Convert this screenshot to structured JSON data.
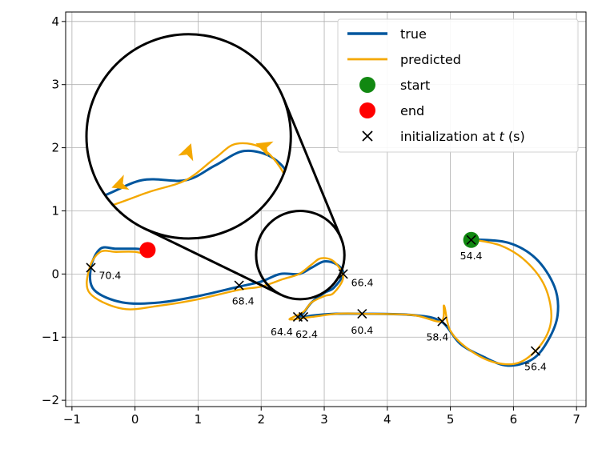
{
  "chart_data": {
    "type": "line",
    "title": "",
    "xlabel": "",
    "ylabel": "",
    "xlim": [
      -1.1,
      7.15
    ],
    "ylim": [
      -2.1,
      4.15
    ],
    "xticks": [
      -1,
      0,
      1,
      2,
      3,
      4,
      5,
      6,
      7
    ],
    "yticks": [
      -2,
      -1,
      0,
      1,
      2,
      3,
      4
    ],
    "grid": true,
    "legend_position": "top-right",
    "colors": {
      "true": "#00569e",
      "predicted": "#f4a800",
      "start": "#118811",
      "end": "#ff0000",
      "init": "#000000"
    },
    "series": [
      {
        "name": "true",
        "points": [
          [
            5.3,
            0.55
          ],
          [
            5.9,
            0.5
          ],
          [
            6.35,
            0.25
          ],
          [
            6.65,
            -0.2
          ],
          [
            6.7,
            -0.65
          ],
          [
            6.55,
            -1.05
          ],
          [
            6.3,
            -1.35
          ],
          [
            5.9,
            -1.45
          ],
          [
            5.5,
            -1.3
          ],
          [
            5.15,
            -1.1
          ],
          [
            4.85,
            -0.75
          ],
          [
            4.4,
            -0.65
          ],
          [
            3.6,
            -0.63
          ],
          [
            3.2,
            -0.63
          ],
          [
            2.8,
            -0.66
          ],
          [
            2.6,
            -0.7
          ],
          [
            2.67,
            -0.62
          ],
          [
            2.8,
            -0.45
          ],
          [
            3.0,
            -0.3
          ],
          [
            3.15,
            -0.22
          ],
          [
            3.3,
            0.0
          ],
          [
            3.2,
            0.15
          ],
          [
            3.0,
            0.2
          ],
          [
            2.8,
            0.1
          ],
          [
            2.6,
            0.0
          ],
          [
            2.3,
            0.0
          ],
          [
            2.0,
            -0.12
          ],
          [
            1.65,
            -0.2
          ],
          [
            1.0,
            -0.35
          ],
          [
            0.4,
            -0.45
          ],
          [
            -0.2,
            -0.45
          ],
          [
            -0.65,
            -0.25
          ],
          [
            -0.7,
            0.1
          ],
          [
            -0.55,
            0.4
          ],
          [
            -0.3,
            0.4
          ],
          [
            0.0,
            0.4
          ],
          [
            0.2,
            0.38
          ]
        ]
      },
      {
        "name": "predicted",
        "points": [
          [
            5.33,
            0.55
          ],
          [
            5.8,
            0.45
          ],
          [
            6.2,
            0.2
          ],
          [
            6.5,
            -0.2
          ],
          [
            6.6,
            -0.7
          ],
          [
            6.45,
            -1.1
          ],
          [
            6.1,
            -1.4
          ],
          [
            5.7,
            -1.4
          ],
          [
            5.3,
            -1.2
          ],
          [
            5.0,
            -0.9
          ],
          [
            4.9,
            -0.5
          ],
          [
            4.85,
            -0.75
          ],
          [
            4.4,
            -0.65
          ],
          [
            3.6,
            -0.63
          ],
          [
            3.2,
            -0.63
          ],
          [
            2.8,
            -0.68
          ],
          [
            2.45,
            -0.72
          ],
          [
            2.67,
            -0.6
          ],
          [
            2.8,
            -0.45
          ],
          [
            3.0,
            -0.35
          ],
          [
            3.15,
            -0.3
          ],
          [
            3.3,
            -0.05
          ],
          [
            3.15,
            0.2
          ],
          [
            2.95,
            0.25
          ],
          [
            2.8,
            0.15
          ],
          [
            2.6,
            0.0
          ],
          [
            2.35,
            -0.08
          ],
          [
            2.0,
            -0.2
          ],
          [
            1.65,
            -0.25
          ],
          [
            1.0,
            -0.4
          ],
          [
            0.4,
            -0.5
          ],
          [
            -0.2,
            -0.55
          ],
          [
            -0.72,
            -0.3
          ],
          [
            -0.72,
            0.1
          ],
          [
            -0.55,
            0.35
          ],
          [
            -0.3,
            0.35
          ],
          [
            0.0,
            0.35
          ],
          [
            0.2,
            0.3
          ]
        ]
      }
    ],
    "start": {
      "label": "start",
      "x": 5.33,
      "y": 0.54
    },
    "end": {
      "label": "end",
      "x": 0.2,
      "y": 0.38
    },
    "initializations": [
      {
        "x": 5.33,
        "y": 0.54,
        "t": "54.4"
      },
      {
        "x": 6.35,
        "y": -1.22,
        "t": "56.4"
      },
      {
        "x": 4.87,
        "y": -0.75,
        "t": "58.4"
      },
      {
        "x": 3.6,
        "y": -0.63,
        "t": "60.4"
      },
      {
        "x": 2.67,
        "y": -0.68,
        "t": "62.4"
      },
      {
        "x": 2.58,
        "y": -0.68,
        "t": "64.4"
      },
      {
        "x": 3.3,
        "y": 0.0,
        "t": "66.4"
      },
      {
        "x": 1.65,
        "y": -0.18,
        "t": "68.4"
      },
      {
        "x": -0.7,
        "y": 0.1,
        "t": "70.4"
      }
    ],
    "legend": [
      {
        "kind": "line",
        "label": "true",
        "color": "#00569e"
      },
      {
        "kind": "line",
        "label": "predicted",
        "color": "#f4a800"
      },
      {
        "kind": "dot",
        "label": "start",
        "color": "#118811"
      },
      {
        "kind": "dot",
        "label": "end",
        "color": "#ff0000"
      },
      {
        "kind": "x",
        "label_parts": [
          "initialization at ",
          "t",
          " (s)"
        ],
        "color": "#000000"
      }
    ],
    "zoom_inset": {
      "target_center": [
        2.62,
        0.3
      ],
      "target_radius": 0.7,
      "inset_center": [
        0.85,
        2.18
      ],
      "inset_radius": 1.62
    }
  }
}
